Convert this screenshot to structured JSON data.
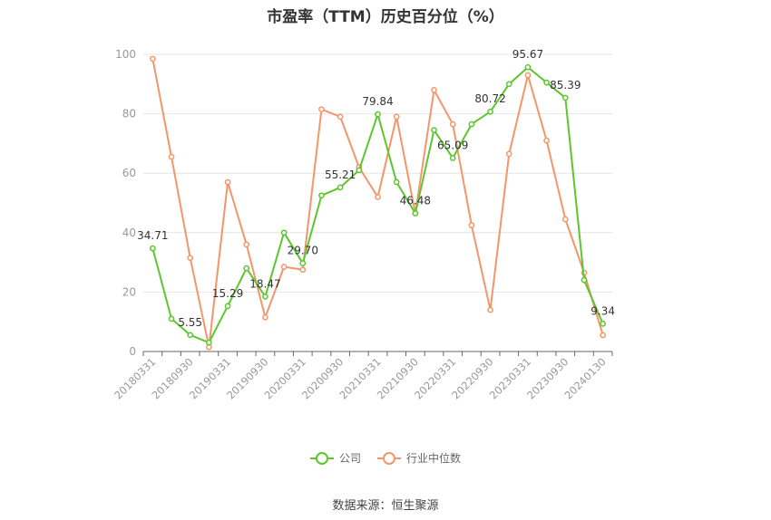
{
  "chart_data": {
    "type": "line",
    "title": "市盈率（TTM）历史百分位（%）",
    "source": "数据来源：恒生聚源",
    "ylim": [
      0,
      100
    ],
    "yticks": [
      0,
      20,
      40,
      60,
      80,
      100
    ],
    "grid": true,
    "legend_position": "bottom",
    "x": [
      "20180331",
      "20180630",
      "20180930",
      "20181231",
      "20190331",
      "20190630",
      "20190930",
      "20191231",
      "20200331",
      "20200630",
      "20200930",
      "20201231",
      "20210331",
      "20210630",
      "20210930",
      "20211231",
      "20220331",
      "20220630",
      "20220930",
      "20221231",
      "20230331",
      "20230630",
      "20230930",
      "20231231",
      "20240130"
    ],
    "x_tick_labels": [
      "20180331",
      "20180930",
      "20190331",
      "20190930",
      "20200331",
      "20200930",
      "20210331",
      "20210930",
      "20220331",
      "20220930",
      "20230331",
      "20230930",
      "20240130"
    ],
    "series": [
      {
        "name": "公司",
        "color": "#5cc72d",
        "values": [
          34.71,
          11,
          5.55,
          3,
          15.29,
          28,
          18.47,
          40,
          29.7,
          52.5,
          55.21,
          61,
          79.84,
          57,
          46.48,
          74.5,
          65.09,
          76.5,
          80.72,
          90,
          95.67,
          90.5,
          85.39,
          24,
          9.34
        ],
        "labels": [
          "34.71",
          null,
          "5.55",
          null,
          "15.29",
          null,
          "18.47",
          null,
          "29.70",
          null,
          "55.21",
          null,
          "79.84",
          null,
          "46.48",
          null,
          "65.09",
          null,
          "80.72",
          null,
          "95.67",
          null,
          "85.39",
          null,
          "9.34"
        ]
      },
      {
        "name": "行业中位数",
        "color": "#f4956a",
        "values": [
          98.5,
          65.5,
          31.5,
          1.5,
          57,
          36,
          11.5,
          28.5,
          27.5,
          81.5,
          79,
          62,
          52,
          79,
          46.5,
          88,
          76.5,
          42.5,
          14,
          66.5,
          93,
          71,
          44.5,
          26.5,
          5.5
        ]
      }
    ]
  }
}
